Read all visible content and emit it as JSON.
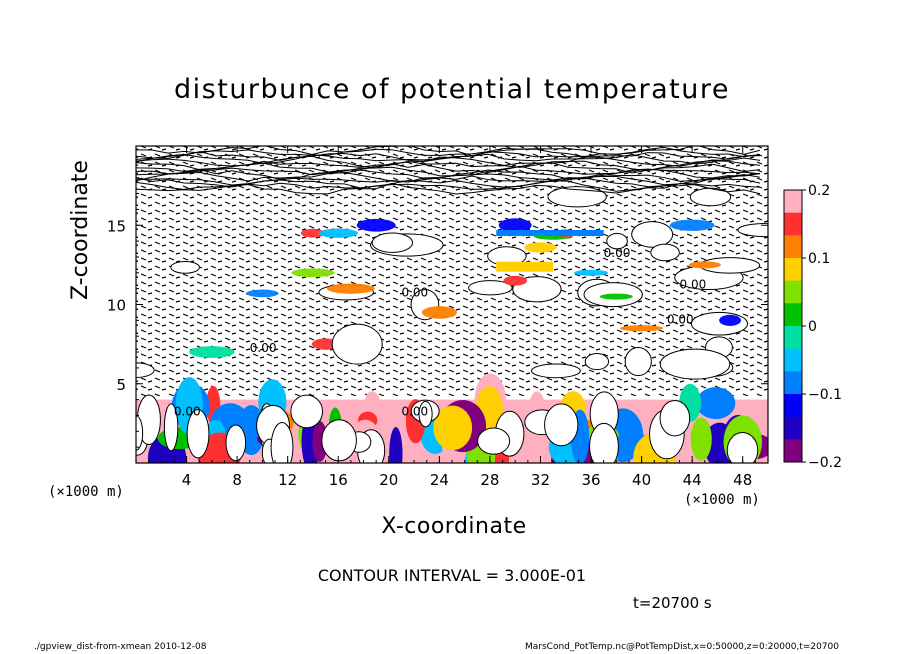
{
  "chart_data": {
    "type": "heatmap",
    "title": "disturbunce of potential temperature",
    "xlabel": "X-coordinate",
    "ylabel": "Z-coordinate",
    "x_unit": "(×1000 m)",
    "y_unit": "(×1000 m)",
    "xlim": [
      0,
      50
    ],
    "ylim": [
      0,
      20
    ],
    "x_ticks": [
      "4",
      "8",
      "12",
      "16",
      "20",
      "24",
      "28",
      "32",
      "36",
      "40",
      "44",
      "48"
    ],
    "y_ticks": [
      "5",
      "10",
      "15"
    ],
    "colorbar": {
      "ticks": [
        "0.2",
        "0.1",
        "0",
        "−0.1",
        "−0.2"
      ],
      "range": [
        -0.2,
        0.2
      ],
      "colors": [
        "#ffb0c0",
        "#ff3030",
        "#ff8000",
        "#ffd000",
        "#80e000",
        "#00c000",
        "#00e0a0",
        "#00c0ff",
        "#0080ff",
        "#0000ff",
        "#2000c0",
        "#800080"
      ]
    },
    "contour_label": "0.00",
    "contour_interval_text": "CONTOUR INTERVAL = 3.000E-01",
    "time_text": "t=20700 s"
  },
  "footer": {
    "left": "./gpview_dist-from-xmean  2010-12-08",
    "right": "MarsCond_PotTemp.nc@PotTempDist,x=0:50000,z=0:20000,t=20700"
  }
}
